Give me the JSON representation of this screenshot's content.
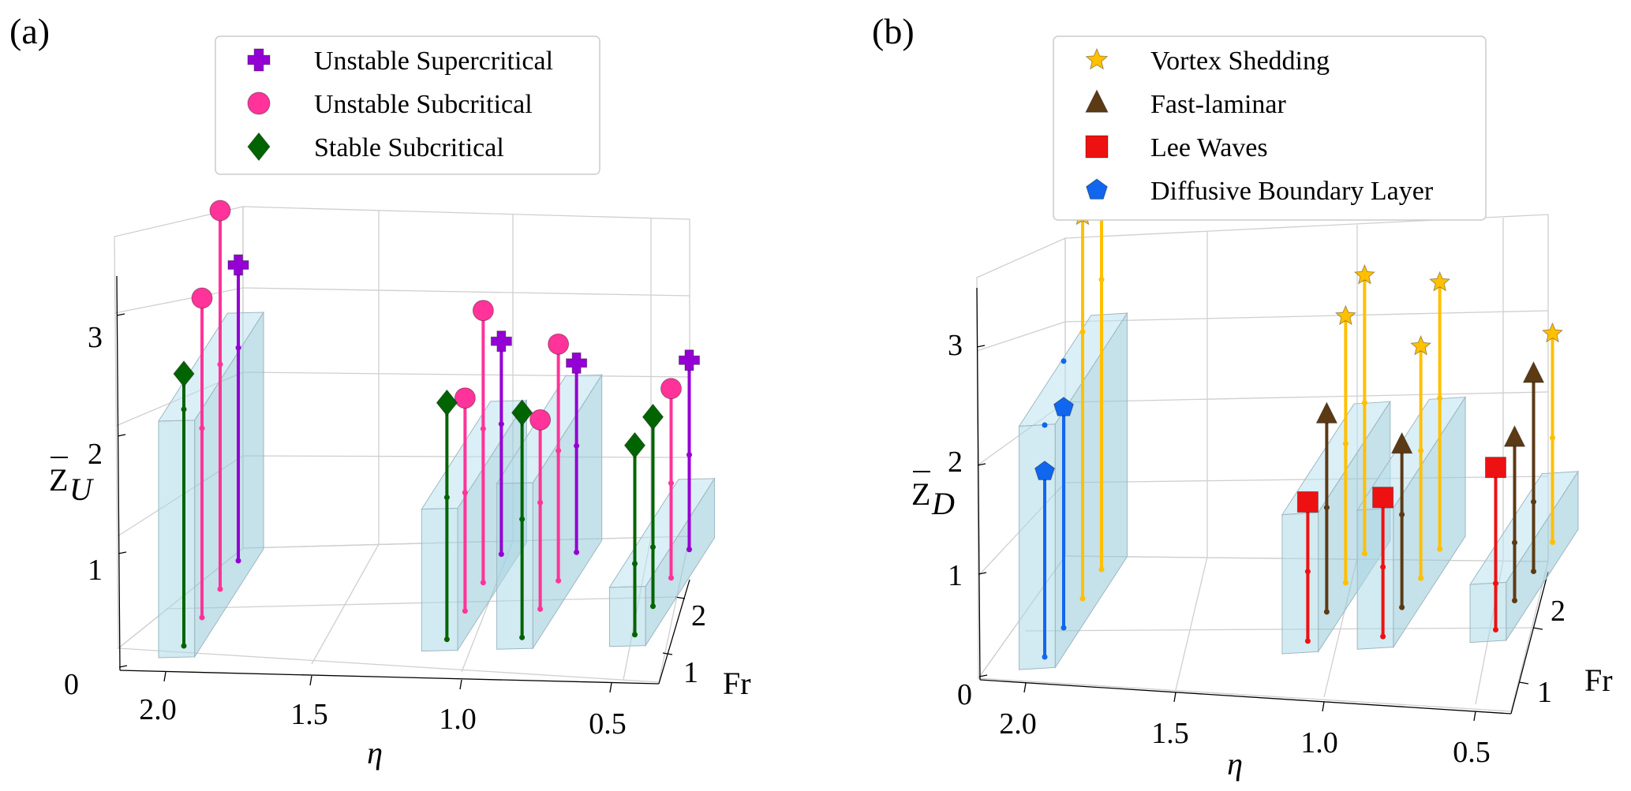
{
  "panels": [
    {
      "letter": "(a)",
      "z_label_main": "Z",
      "z_label_sub": "U",
      "x_label": "η",
      "y_label": "Fr",
      "x_ticks": [
        "2.0",
        "1.5",
        "1.0",
        "0.5"
      ],
      "y_ticks": [
        "1",
        "2"
      ],
      "z_ticks": [
        "0",
        "1",
        "2",
        "3"
      ],
      "legend": [
        {
          "label": "Unstable Supercritical",
          "marker": "plus",
          "color": "#9400D3"
        },
        {
          "label": "Unstable Subcritical",
          "marker": "circle",
          "color": "#FF3399"
        },
        {
          "label": "Stable Subcritical",
          "marker": "diamond",
          "color": "#006400"
        }
      ]
    },
    {
      "letter": "(b)",
      "z_label_main": "Z",
      "z_label_sub": "D",
      "x_label": "η",
      "y_label": "Fr",
      "x_ticks": [
        "2.0",
        "1.5",
        "1.0",
        "0.5"
      ],
      "y_ticks": [
        "1",
        "2"
      ],
      "z_ticks": [
        "0",
        "1",
        "2",
        "3"
      ],
      "legend": [
        {
          "label": "Vortex Shedding",
          "marker": "star",
          "color": "#FFC000"
        },
        {
          "label": "Fast-laminar",
          "marker": "triangle",
          "color": "#5C3A14"
        },
        {
          "label": "Lee Waves",
          "marker": "square",
          "color": "#EE1111"
        },
        {
          "label": "Diffusive Boundary Layer",
          "marker": "pentagon",
          "color": "#1166EE"
        }
      ]
    }
  ],
  "chart_data": [
    {
      "type": "3d-stem",
      "title": "(a)",
      "xlabel": "η",
      "ylabel": "Fr",
      "zlabel": "Z̄_U",
      "xlim": [
        2.1,
        0.4
      ],
      "ylim": [
        0.3,
        2.2
      ],
      "zlim": [
        0,
        3.3
      ],
      "slabs": [
        {
          "eta": 2.0,
          "fr_min": 0.3,
          "fr_max": 2.2,
          "z": 2.0
        },
        {
          "eta": 1.125,
          "fr_min": 0.3,
          "fr_max": 2.2,
          "z": 1.2
        },
        {
          "eta": 0.875,
          "fr_min": 0.3,
          "fr_max": 2.2,
          "z": 1.4
        },
        {
          "eta": 0.5,
          "fr_min": 0.3,
          "fr_max": 2.2,
          "z": 0.5
        }
      ],
      "series": [
        {
          "name": "Unstable Supercritical",
          "marker": "plus",
          "color": "#9400D3",
          "points": [
            {
              "eta": 2.0,
              "fr": 2.0,
              "z": 2.5,
              "z_mid": 1.8,
              "z_base": 0.0
            },
            {
              "eta": 1.125,
              "fr": 2.0,
              "z": 1.8,
              "z_mid": 1.1,
              "z_base": 0.0
            },
            {
              "eta": 0.875,
              "fr": 2.0,
              "z": 1.6,
              "z_mid": 0.9,
              "z_base": 0.0
            },
            {
              "eta": 0.5,
              "fr": 2.0,
              "z": 1.6,
              "z_mid": 0.8,
              "z_base": 0.0
            }
          ]
        },
        {
          "name": "Unstable Subcritical",
          "marker": "circle",
          "color": "#FF3399",
          "points": [
            {
              "eta": 2.0,
              "fr": 1.0,
              "z": 2.7,
              "z_mid": 1.6,
              "z_base": 0.0
            },
            {
              "eta": 2.0,
              "fr": 1.5,
              "z": 3.2,
              "z_mid": 1.9,
              "z_base": 0.0
            },
            {
              "eta": 1.125,
              "fr": 1.0,
              "z": 1.8,
              "z_mid": 1.0,
              "z_base": 0.0
            },
            {
              "eta": 1.125,
              "fr": 1.5,
              "z": 2.3,
              "z_mid": 1.3,
              "z_base": 0.0
            },
            {
              "eta": 0.875,
              "fr": 1.0,
              "z": 1.6,
              "z_mid": 0.9,
              "z_base": 0.0
            },
            {
              "eta": 0.875,
              "fr": 1.5,
              "z": 2.0,
              "z_mid": 1.1,
              "z_base": 0.0
            },
            {
              "eta": 0.5,
              "fr": 1.5,
              "z": 1.6,
              "z_mid": 0.8,
              "z_base": 0.0
            }
          ]
        },
        {
          "name": "Stable Subcritical",
          "marker": "diamond",
          "color": "#006400",
          "points": [
            {
              "eta": 2.0,
              "fr": 0.5,
              "z": 2.3,
              "z_mid": 2.0,
              "z_base": 0.0
            },
            {
              "eta": 1.125,
              "fr": 0.5,
              "z": 2.0,
              "z_mid": 1.2,
              "z_base": 0.0
            },
            {
              "eta": 0.875,
              "fr": 0.5,
              "z": 1.9,
              "z_mid": 1.0,
              "z_base": 0.0
            },
            {
              "eta": 0.5,
              "fr": 0.5,
              "z": 1.6,
              "z_mid": 0.6,
              "z_base": 0.0
            },
            {
              "eta": 0.5,
              "fr": 1.0,
              "z": 1.6,
              "z_mid": 0.5,
              "z_base": 0.0
            }
          ]
        }
      ]
    },
    {
      "type": "3d-stem",
      "title": "(b)",
      "xlabel": "η",
      "ylabel": "Fr",
      "zlabel": "Z̄_D",
      "xlim": [
        2.1,
        0.4
      ],
      "ylim": [
        0.3,
        2.2
      ],
      "zlim": [
        0,
        3.3
      ],
      "slabs": [
        {
          "eta": 2.0,
          "fr_min": 0.3,
          "fr_max": 2.2,
          "z": 2.1
        },
        {
          "eta": 1.125,
          "fr_min": 0.3,
          "fr_max": 2.2,
          "z": 1.2
        },
        {
          "eta": 0.875,
          "fr_min": 0.3,
          "fr_max": 2.2,
          "z": 1.2
        },
        {
          "eta": 0.5,
          "fr_min": 0.3,
          "fr_max": 2.2,
          "z": 0.5
        }
      ],
      "series": [
        {
          "name": "Vortex Shedding",
          "marker": "star",
          "color": "#FFC000",
          "points": [
            {
              "eta": 2.0,
              "fr": 1.5,
              "z": 3.3,
              "z_mid": 2.3,
              "z_base": 0.0
            },
            {
              "eta": 2.0,
              "fr": 2.0,
              "z": 3.3,
              "z_mid": 2.5,
              "z_base": 0.0
            },
            {
              "eta": 1.125,
              "fr": 1.5,
              "z": 2.3,
              "z_mid": 1.2,
              "z_base": 0.0
            },
            {
              "eta": 1.125,
              "fr": 2.0,
              "z": 2.4,
              "z_mid": 1.3,
              "z_base": 0.0
            },
            {
              "eta": 0.875,
              "fr": 1.5,
              "z": 2.0,
              "z_mid": 1.1,
              "z_base": 0.0
            },
            {
              "eta": 0.875,
              "fr": 2.0,
              "z": 2.3,
              "z_mid": 1.3,
              "z_base": 0.0
            },
            {
              "eta": 0.5,
              "fr": 2.0,
              "z": 1.8,
              "z_mid": 0.9,
              "z_base": 0.0
            }
          ]
        },
        {
          "name": "Fast-laminar",
          "marker": "triangle",
          "color": "#5C3A14",
          "points": [
            {
              "eta": 1.125,
              "fr": 1.0,
              "z": 1.7,
              "z_mid": 0.9,
              "z_base": 0.0
            },
            {
              "eta": 0.875,
              "fr": 1.0,
              "z": 1.4,
              "z_mid": 0.8,
              "z_base": 0.0
            },
            {
              "eta": 0.5,
              "fr": 1.0,
              "z": 1.4,
              "z_mid": 0.5,
              "z_base": 0.0
            },
            {
              "eta": 0.5,
              "fr": 1.5,
              "z": 1.7,
              "z_mid": 0.6,
              "z_base": 0.0
            }
          ]
        },
        {
          "name": "Lee Waves",
          "marker": "square",
          "color": "#EE1111",
          "points": [
            {
              "eta": 1.125,
              "fr": 0.5,
              "z": 1.2,
              "z_mid": 0.6,
              "z_base": 0.0
            },
            {
              "eta": 0.875,
              "fr": 0.5,
              "z": 1.2,
              "z_mid": 0.6,
              "z_base": 0.0
            },
            {
              "eta": 0.5,
              "fr": 0.5,
              "z": 1.4,
              "z_mid": 0.4,
              "z_base": 0.0
            }
          ]
        },
        {
          "name": "Diffusive Boundary Layer",
          "marker": "pentagon",
          "color": "#1166EE",
          "points": [
            {
              "eta": 2.0,
              "fr": 0.5,
              "z": 1.6,
              "z_mid": 2.0,
              "z_base": 0.0
            },
            {
              "eta": 2.0,
              "fr": 1.0,
              "z": 1.9,
              "z_mid": 2.3,
              "z_base": 0.0
            }
          ]
        }
      ]
    }
  ]
}
